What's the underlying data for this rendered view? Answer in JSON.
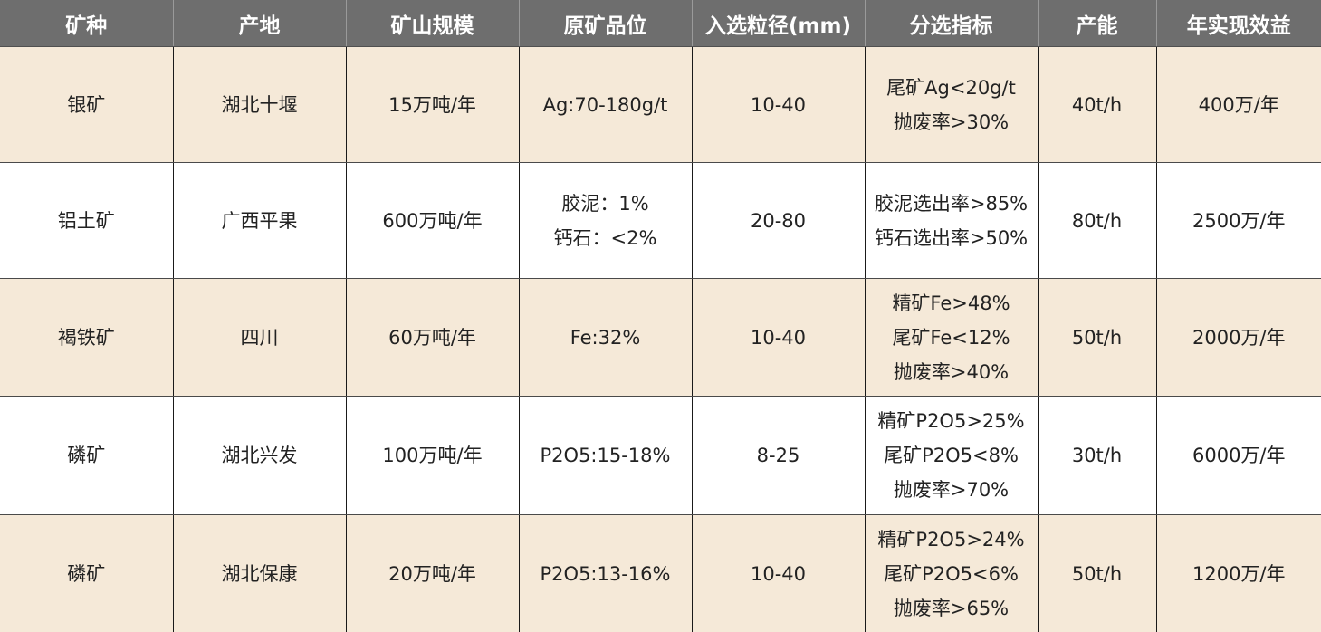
{
  "headers": [
    "矿种",
    "产地",
    "矿山规模",
    "原矿品位",
    "入选粒径(mm)",
    "分选指标",
    "产能",
    "年实现效益"
  ],
  "rows": [
    {
      "mineral": "银矿",
      "location": "湖北十堰",
      "scale": "15万吨/年",
      "grade": [
        "Ag:70-180g/t"
      ],
      "size": "10-40",
      "indicators": [
        "尾矿Ag<20g/t",
        "抛废率>30%"
      ],
      "capacity": "40t/h",
      "benefit": "400万/年"
    },
    {
      "mineral": "铝土矿",
      "location": "广西平果",
      "scale": "600万吨/年",
      "grade": [
        "胶泥：1%",
        "钙石：<2%"
      ],
      "size": "20-80",
      "indicators": [
        "胶泥选出率>85%",
        "钙石选出率>50%"
      ],
      "capacity": "80t/h",
      "benefit": "2500万/年"
    },
    {
      "mineral": "褐铁矿",
      "location": "四川",
      "scale": "60万吨/年",
      "grade": [
        "Fe:32%"
      ],
      "size": "10-40",
      "indicators": [
        "精矿Fe>48%",
        "尾矿Fe<12%",
        "抛废率>40%"
      ],
      "capacity": "50t/h",
      "benefit": "2000万/年"
    },
    {
      "mineral": "磷矿",
      "location": "湖北兴发",
      "scale": "100万吨/年",
      "grade": [
        "P2O5:15-18%"
      ],
      "size": "8-25",
      "indicators": [
        "精矿P2O5>25%",
        "尾矿P2O5<8%",
        "抛废率>70%"
      ],
      "capacity": "30t/h",
      "benefit": "6000万/年"
    },
    {
      "mineral": "磷矿",
      "location": "湖北保康",
      "scale": "20万吨/年",
      "grade": [
        "P2O5:13-16%"
      ],
      "size": "10-40",
      "indicators": [
        "精矿P2O5>24%",
        "尾矿P2O5<6%",
        "抛废率>65%"
      ],
      "capacity": "50t/h",
      "benefit": "1200万/年"
    }
  ],
  "colors": {
    "header_bg": "#6e6e6e",
    "header_text": "#ffffff",
    "row_tan": "#f5e9d8",
    "row_white": "#ffffff"
  }
}
